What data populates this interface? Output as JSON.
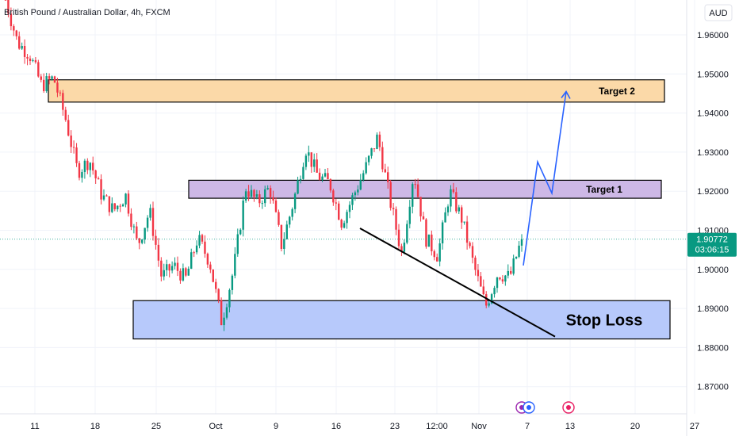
{
  "header": {
    "title": "British Pound / Australian Dollar, 4h, FXCM"
  },
  "currency_badge": "AUD",
  "price_label": {
    "price": "1.90772",
    "countdown": "03:06:15"
  },
  "colors": {
    "up": "#089981",
    "down": "#f23645",
    "target2_fill": "#fbd9a8",
    "target1_fill": "#cdb8e6",
    "stop_fill": "#b7c9fb",
    "projection": "#2962ff",
    "trendline": "#000000",
    "grid": "#f0f3fa"
  },
  "zones": [
    {
      "label": "Target 2",
      "from": 1.9428,
      "to": 1.9485,
      "color": "#fbd9a8"
    },
    {
      "label": "Target 1",
      "from": 1.9182,
      "to": 1.9228,
      "color": "#cdb8e6"
    },
    {
      "label": "Stop Loss",
      "from": 1.8822,
      "to": 1.892,
      "color": "#b7c9fb"
    }
  ],
  "chart_data": {
    "type": "candlestick",
    "symbol": "GBPAUD",
    "timeframe": "4h",
    "y_ticks": [
      "1.96000",
      "1.95000",
      "1.94000",
      "1.93000",
      "1.92000",
      "1.91000",
      "1.90000",
      "1.89000",
      "1.88000",
      "1.87000"
    ],
    "ylim": [
      1.8638,
      1.9698
    ],
    "x_ticks": [
      "11",
      "18",
      "25",
      "Oct",
      "9",
      "16",
      "23",
      "12:00",
      "Nov",
      "7",
      "13",
      "20",
      "27"
    ],
    "current_price": 1.90772,
    "trend_points": [
      {
        "p": 1.969
      },
      {
        "p": 1.958
      },
      {
        "p": 1.955
      },
      {
        "p": 1.947
      },
      {
        "p": 1.949
      },
      {
        "p": 1.9385
      },
      {
        "p": 1.925
      },
      {
        "p": 1.928
      },
      {
        "p": 1.919
      },
      {
        "p": 1.915
      },
      {
        "p": 1.919
      },
      {
        "p": 1.906
      },
      {
        "p": 1.915
      },
      {
        "p": 1.898
      },
      {
        "p": 1.901
      },
      {
        "p": 1.8975
      },
      {
        "p": 1.908
      },
      {
        "p": 1.902
      },
      {
        "p": 1.8865
      },
      {
        "p": 1.9
      },
      {
        "p": 1.921
      },
      {
        "p": 1.917
      },
      {
        "p": 1.921
      },
      {
        "p": 1.906
      },
      {
        "p": 1.9175
      },
      {
        "p": 1.931
      },
      {
        "p": 1.924
      },
      {
        "p": 1.922
      },
      {
        "p": 1.912
      },
      {
        "p": 1.919
      },
      {
        "p": 1.926
      },
      {
        "p": 1.934
      },
      {
        "p": 1.918
      },
      {
        "p": 1.904
      },
      {
        "p": 1.925
      },
      {
        "p": 1.908
      },
      {
        "p": 1.9035
      },
      {
        "p": 1.92
      },
      {
        "p": 1.913
      },
      {
        "p": 1.901
      },
      {
        "p": 1.8905
      },
      {
        "p": 1.899
      },
      {
        "p": 1.898
      },
      {
        "p": 1.9077
      }
    ],
    "trendline": {
      "from": {
        "x": "16",
        "y": 1.9105
      },
      "to": {
        "x": "Nov",
        "y": 1.8832
      }
    },
    "projection": [
      1.901,
      1.9275,
      1.9195,
      1.9455
    ],
    "event_markers": 3
  }
}
